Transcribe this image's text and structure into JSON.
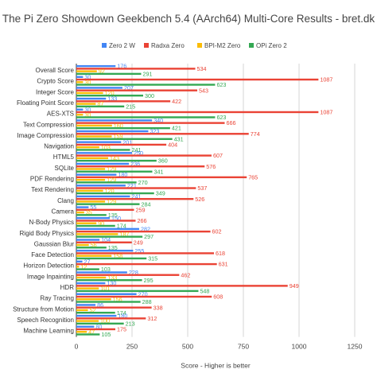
{
  "chart_data": {
    "type": "bar",
    "orientation": "horizontal",
    "title": "The Pi Zero Showdown Geekbench 5.4 (AArch64) Multi-Core Results - bret.dk",
    "xlabel": "Score - Higher is better",
    "ylabel": "",
    "xlim": [
      0,
      1250
    ],
    "xticks": [
      0,
      250,
      500,
      750,
      1000,
      1250
    ],
    "grid": true,
    "legend_position": "top",
    "data_labels": true,
    "categories": [
      "Overall Score",
      "Crypto Score",
      "Integer Score",
      "Floating Point Score",
      "AES-XTS",
      "Text Compression",
      "Image Compression",
      "Navigation",
      "HTML5",
      "SQLite",
      "PDF Rendering",
      "Text Rendering",
      "Clang",
      "Camera",
      "N-Body Physics",
      "Rigid Body Physics",
      "Gaussian Blur",
      "Face Detection",
      "Horizon Detection",
      "Image Inpainting",
      "HDR",
      "Ray Tracing",
      "Structure from Motion",
      "Speech Recognition",
      "Machine Learning"
    ],
    "series": [
      {
        "name": "Zero 2 W",
        "color": "#4285f4",
        "values": [
          176,
          30,
          207,
          133,
          30,
          340,
          323,
          201,
          250,
          236,
          180,
          221,
          241,
          55,
          150,
          282,
          104,
          255,
          27,
          228,
          130,
          270,
          86,
          180,
          80
        ]
      },
      {
        "name": "Radxa Zero",
        "color": "#ea4335",
        "values": [
          534,
          1087,
          543,
          422,
          1087,
          666,
          774,
          404,
          607,
          576,
          765,
          537,
          526,
          259,
          266,
          602,
          249,
          618,
          631,
          462,
          949,
          608,
          338,
          312,
          175
        ]
      },
      {
        "name": "BPI-M2 Zero",
        "color": "#fbbc04",
        "values": [
          92,
          30,
          120,
          87,
          30,
          160,
          159,
          103,
          143,
          129,
          129,
          120,
          129,
          35,
          90,
          187,
          56,
          158,
          12,
          133,
          101,
          156,
          52,
          100,
          47
        ]
      },
      {
        "name": "OPi Zero 2",
        "color": "#34a853",
        "values": [
          291,
          623,
          300,
          215,
          623,
          421,
          431,
          241,
          360,
          341,
          270,
          349,
          284,
          135,
          174,
          297,
          135,
          315,
          103,
          295,
          548,
          288,
          174,
          213,
          105
        ]
      }
    ]
  }
}
